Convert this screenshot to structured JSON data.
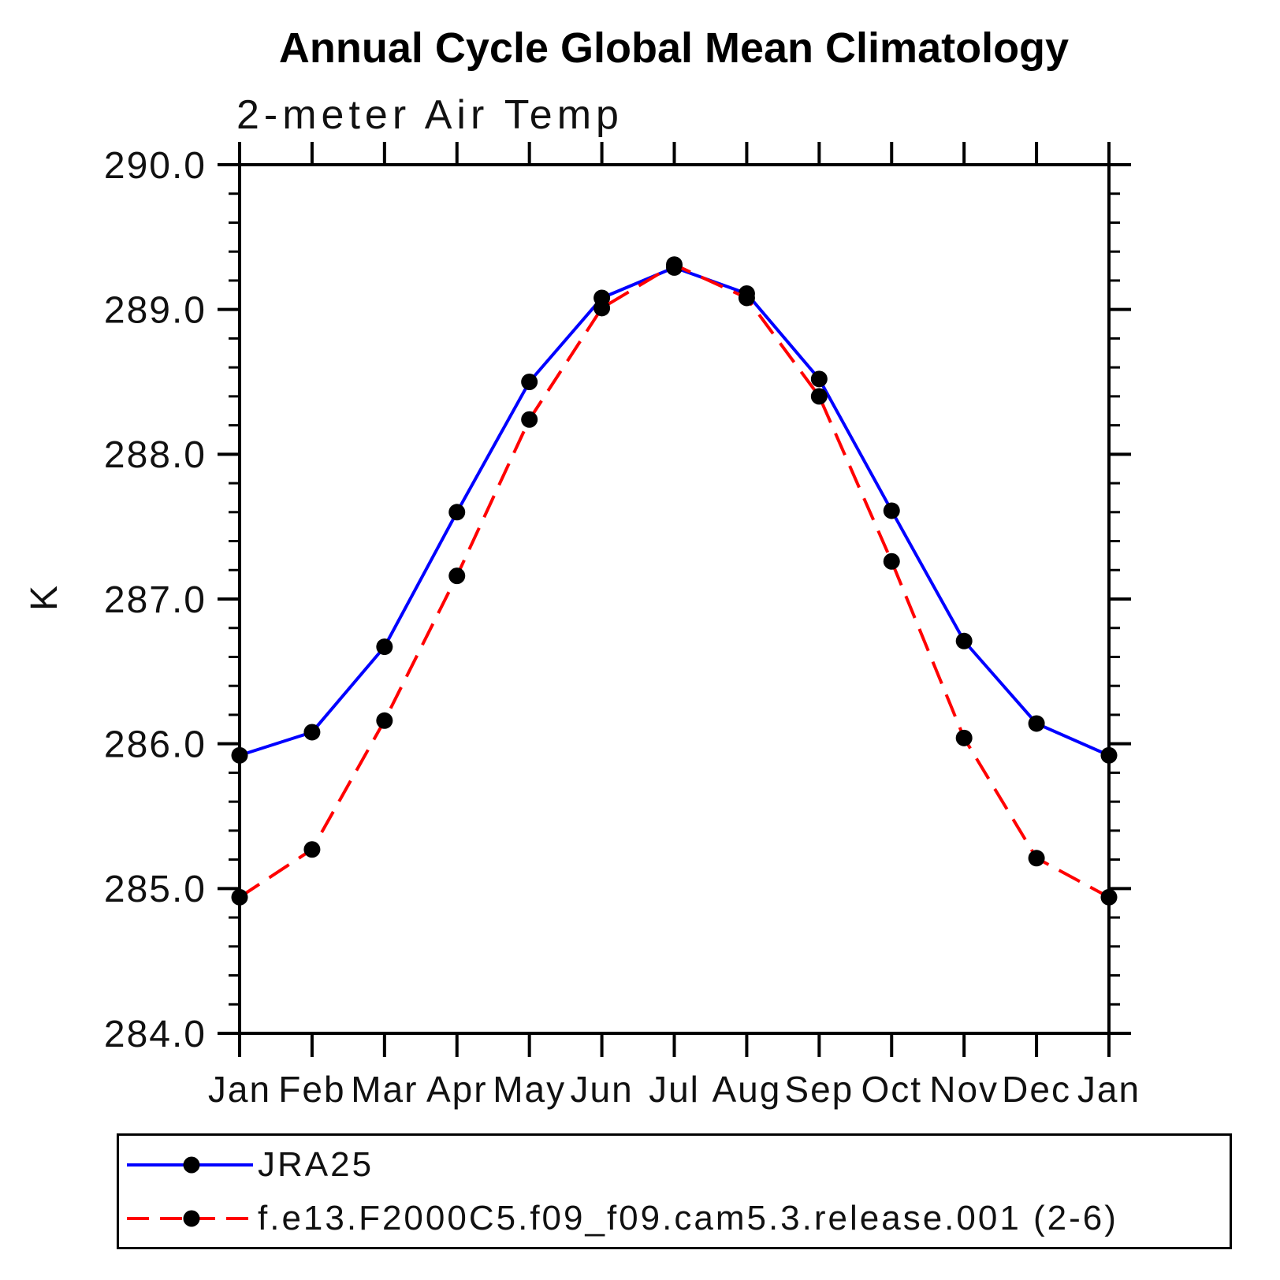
{
  "page": {
    "background": "#FFFFFF"
  },
  "chart_data": {
    "type": "line",
    "title": "Annual Cycle Global Mean Climatology",
    "subtitle": "2-meter Air Temp",
    "ylabel": "K",
    "xlabel": "",
    "x_categories": [
      "Jan",
      "Feb",
      "Mar",
      "Apr",
      "May",
      "Jun",
      "Jul",
      "Aug",
      "Sep",
      "Oct",
      "Nov",
      "Dec",
      "Jan"
    ],
    "ylim": [
      284.0,
      290.0
    ],
    "y_major_tick_step": 1.0,
    "y_minor_tick_step": 0.2,
    "y_major_tick_labels": [
      "284.0",
      "285.0",
      "286.0",
      "287.0",
      "288.0",
      "289.0",
      "290.0"
    ],
    "grid": false,
    "legend": {
      "position": "bottom-left",
      "border": true
    },
    "series": [
      {
        "name": "JRA25",
        "color": "#0000FF",
        "line_style": "solid",
        "marker": "filled-circle",
        "marker_color": "#000000",
        "values": [
          285.92,
          286.08,
          286.67,
          287.6,
          288.5,
          289.08,
          289.29,
          289.11,
          288.52,
          287.61,
          286.71,
          286.14,
          285.92
        ]
      },
      {
        "name": "f.e13.F2000C5.f09_f09.cam5.3.release.001 (2-6)",
        "color": "#FF0000",
        "line_style": "dashed",
        "marker": "filled-circle",
        "marker_color": "#000000",
        "values": [
          284.94,
          285.27,
          286.16,
          287.16,
          288.24,
          289.01,
          289.31,
          289.08,
          288.4,
          287.26,
          286.04,
          285.21,
          284.94
        ]
      }
    ]
  },
  "colors": {
    "axis": "#000000",
    "text": "#111111",
    "background": "#FFFFFF",
    "series_jra25": "#0000FF",
    "series_model": "#FF0000",
    "marker": "#000000"
  }
}
